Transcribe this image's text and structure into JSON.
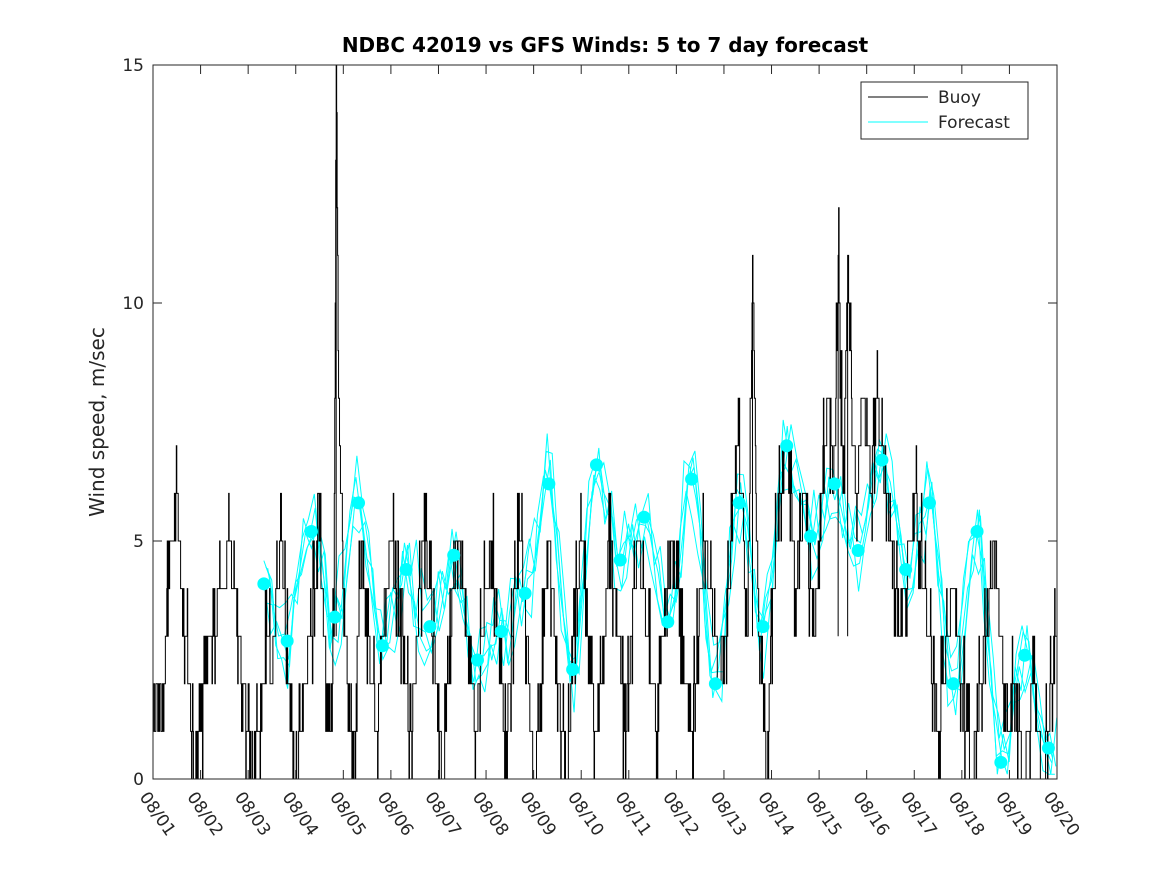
{
  "chart_data": {
    "type": "line",
    "title": "NDBC 42019 vs GFS Winds: 5 to 7 day forecast",
    "xlabel": "",
    "ylabel": "Wind speed, m/sec",
    "x_tick_labels": [
      "08/01",
      "08/02",
      "08/03",
      "08/04",
      "08/05",
      "08/06",
      "08/07",
      "08/08",
      "08/09",
      "08/10",
      "08/11",
      "08/12",
      "08/13",
      "08/14",
      "08/15",
      "08/16",
      "08/17",
      "08/18",
      "08/19",
      "08/20"
    ],
    "y_ticks": [
      0,
      5,
      10,
      15
    ],
    "xlim_days": [
      0,
      19
    ],
    "ylim": [
      0,
      15
    ],
    "legend": [
      {
        "name": "Buoy",
        "color": "#000000"
      },
      {
        "name": "Forecast",
        "color": "#00ffff"
      }
    ],
    "buoy": {
      "name": "Buoy",
      "color": "#000000",
      "keypoints": [
        [
          0,
          1
        ],
        [
          0.1,
          2
        ],
        [
          0.2,
          1
        ],
        [
          0.3,
          4
        ],
        [
          0.4,
          5
        ],
        [
          0.5,
          6
        ],
        [
          0.6,
          4
        ],
        [
          0.7,
          3
        ],
        [
          0.8,
          1
        ],
        [
          0.9,
          0
        ],
        [
          1.0,
          1
        ],
        [
          1.1,
          2
        ],
        [
          1.2,
          3
        ],
        [
          1.3,
          3
        ],
        [
          1.4,
          4
        ],
        [
          1.5,
          4
        ],
        [
          1.6,
          5
        ],
        [
          1.7,
          4
        ],
        [
          1.8,
          3
        ],
        [
          1.9,
          2
        ],
        [
          2.0,
          1
        ],
        [
          2.1,
          0
        ],
        [
          2.2,
          1
        ],
        [
          2.3,
          2
        ],
        [
          2.4,
          3
        ],
        [
          2.5,
          2
        ],
        [
          2.6,
          4
        ],
        [
          2.7,
          5
        ],
        [
          2.8,
          3
        ],
        [
          2.9,
          1
        ],
        [
          3.0,
          0
        ],
        [
          3.1,
          1
        ],
        [
          3.2,
          2
        ],
        [
          3.3,
          3
        ],
        [
          3.4,
          4
        ],
        [
          3.5,
          5
        ],
        [
          3.6,
          3
        ],
        [
          3.7,
          1
        ],
        [
          3.8,
          3
        ],
        [
          3.85,
          15
        ],
        [
          3.9,
          8
        ],
        [
          4.0,
          4
        ],
        [
          4.1,
          2
        ],
        [
          4.2,
          0
        ],
        [
          4.3,
          3
        ],
        [
          4.4,
          5
        ],
        [
          4.5,
          3
        ],
        [
          4.6,
          2
        ],
        [
          4.7,
          1
        ],
        [
          4.8,
          3
        ],
        [
          4.9,
          4
        ],
        [
          5.0,
          5
        ],
        [
          5.1,
          4
        ],
        [
          5.2,
          3
        ],
        [
          5.3,
          2
        ],
        [
          5.4,
          1
        ],
        [
          5.5,
          2
        ],
        [
          5.6,
          4
        ],
        [
          5.7,
          5
        ],
        [
          5.8,
          4
        ],
        [
          5.9,
          3
        ],
        [
          6.0,
          1
        ],
        [
          6.1,
          0
        ],
        [
          6.2,
          2
        ],
        [
          6.3,
          4
        ],
        [
          6.4,
          5
        ],
        [
          6.5,
          4
        ],
        [
          6.6,
          3
        ],
        [
          6.7,
          2
        ],
        [
          6.8,
          1
        ],
        [
          6.9,
          3
        ],
        [
          7.0,
          4
        ],
        [
          7.1,
          5
        ],
        [
          7.2,
          4
        ],
        [
          7.3,
          2
        ],
        [
          7.4,
          1
        ],
        [
          7.5,
          2
        ],
        [
          7.6,
          4
        ],
        [
          7.7,
          5
        ],
        [
          7.8,
          4
        ],
        [
          7.9,
          2
        ],
        [
          8.0,
          0
        ],
        [
          8.1,
          1
        ],
        [
          8.2,
          3
        ],
        [
          8.3,
          5
        ],
        [
          8.4,
          4
        ],
        [
          8.5,
          2
        ],
        [
          8.6,
          1
        ],
        [
          8.7,
          0
        ],
        [
          8.8,
          2
        ],
        [
          8.9,
          4
        ],
        [
          9.0,
          5
        ],
        [
          9.1,
          4
        ],
        [
          9.2,
          2
        ],
        [
          9.3,
          1
        ],
        [
          9.4,
          2
        ],
        [
          9.5,
          3
        ],
        [
          9.6,
          5
        ],
        [
          9.7,
          4
        ],
        [
          9.8,
          3
        ],
        [
          9.9,
          1
        ],
        [
          10.0,
          2
        ],
        [
          10.1,
          4
        ],
        [
          10.2,
          5
        ],
        [
          10.3,
          4
        ],
        [
          10.4,
          3
        ],
        [
          10.5,
          2
        ],
        [
          10.6,
          1
        ],
        [
          10.7,
          3
        ],
        [
          10.8,
          4
        ],
        [
          10.9,
          5
        ],
        [
          11.0,
          4
        ],
        [
          11.1,
          3
        ],
        [
          11.2,
          2
        ],
        [
          11.3,
          1
        ],
        [
          11.4,
          2
        ],
        [
          11.5,
          4
        ],
        [
          11.6,
          5
        ],
        [
          11.7,
          4
        ],
        [
          11.8,
          3
        ],
        [
          11.9,
          2
        ],
        [
          12.0,
          3
        ],
        [
          12.1,
          4
        ],
        [
          12.2,
          6
        ],
        [
          12.3,
          7
        ],
        [
          12.4,
          5
        ],
        [
          12.5,
          3
        ],
        [
          12.6,
          11
        ],
        [
          12.7,
          4
        ],
        [
          12.8,
          2
        ],
        [
          12.9,
          0
        ],
        [
          13.0,
          3
        ],
        [
          13.1,
          5
        ],
        [
          13.2,
          6
        ],
        [
          13.3,
          7
        ],
        [
          13.4,
          6
        ],
        [
          13.5,
          4
        ],
        [
          13.6,
          5
        ],
        [
          13.7,
          6
        ],
        [
          13.8,
          4
        ],
        [
          13.9,
          3
        ],
        [
          14.0,
          5
        ],
        [
          14.1,
          7
        ],
        [
          14.2,
          8
        ],
        [
          14.3,
          6
        ],
        [
          14.4,
          11
        ],
        [
          14.5,
          6
        ],
        [
          14.6,
          11
        ],
        [
          14.7,
          7
        ],
        [
          14.8,
          6
        ],
        [
          14.9,
          8
        ],
        [
          15.0,
          7
        ],
        [
          15.1,
          6
        ],
        [
          15.2,
          8
        ],
        [
          15.3,
          7
        ],
        [
          15.4,
          6
        ],
        [
          15.5,
          5
        ],
        [
          15.6,
          4
        ],
        [
          15.7,
          3
        ],
        [
          15.8,
          4
        ],
        [
          15.9,
          5
        ],
        [
          16.0,
          6
        ],
        [
          16.1,
          5
        ],
        [
          16.2,
          4
        ],
        [
          16.3,
          3
        ],
        [
          16.4,
          2
        ],
        [
          16.5,
          1
        ],
        [
          16.6,
          2
        ],
        [
          16.7,
          3
        ],
        [
          16.8,
          4
        ],
        [
          16.9,
          3
        ],
        [
          17.0,
          2
        ],
        [
          17.1,
          1
        ],
        [
          17.2,
          0
        ],
        [
          17.3,
          1
        ],
        [
          17.4,
          2
        ],
        [
          17.5,
          3
        ],
        [
          17.6,
          4
        ],
        [
          17.7,
          5
        ],
        [
          17.8,
          3
        ],
        [
          17.9,
          2
        ],
        [
          18.0,
          1
        ],
        [
          18.1,
          2
        ],
        [
          18.2,
          1
        ],
        [
          18.3,
          0
        ],
        [
          18.4,
          1
        ],
        [
          18.5,
          2
        ],
        [
          18.6,
          1
        ],
        [
          18.7,
          0
        ],
        [
          18.8,
          1
        ],
        [
          18.9,
          2
        ],
        [
          19.0,
          3
        ]
      ]
    },
    "forecast": {
      "name": "Forecast",
      "color": "#00ffff",
      "dots": [
        [
          2.33,
          4.1
        ],
        [
          2.82,
          2.9
        ],
        [
          3.33,
          5.2
        ],
        [
          3.82,
          3.4
        ],
        [
          4.32,
          5.8
        ],
        [
          4.82,
          2.8
        ],
        [
          5.32,
          4.4
        ],
        [
          5.82,
          3.2
        ],
        [
          6.32,
          4.7
        ],
        [
          6.82,
          2.5
        ],
        [
          7.32,
          3.1
        ],
        [
          7.82,
          3.9
        ],
        [
          8.32,
          6.2
        ],
        [
          8.82,
          2.3
        ],
        [
          9.32,
          6.6
        ],
        [
          9.82,
          4.6
        ],
        [
          10.32,
          5.5
        ],
        [
          10.82,
          3.3
        ],
        [
          11.32,
          6.3
        ],
        [
          11.82,
          2.0
        ],
        [
          12.32,
          5.8
        ],
        [
          12.82,
          3.2
        ],
        [
          13.32,
          7.0
        ],
        [
          13.82,
          5.1
        ],
        [
          14.32,
          6.2
        ],
        [
          14.82,
          4.8
        ],
        [
          15.32,
          6.7
        ],
        [
          15.82,
          4.4
        ],
        [
          16.32,
          5.8
        ],
        [
          16.82,
          2.0
        ],
        [
          17.32,
          5.2
        ],
        [
          17.82,
          0.35
        ],
        [
          18.32,
          2.6
        ],
        [
          18.82,
          0.65
        ]
      ]
    }
  }
}
